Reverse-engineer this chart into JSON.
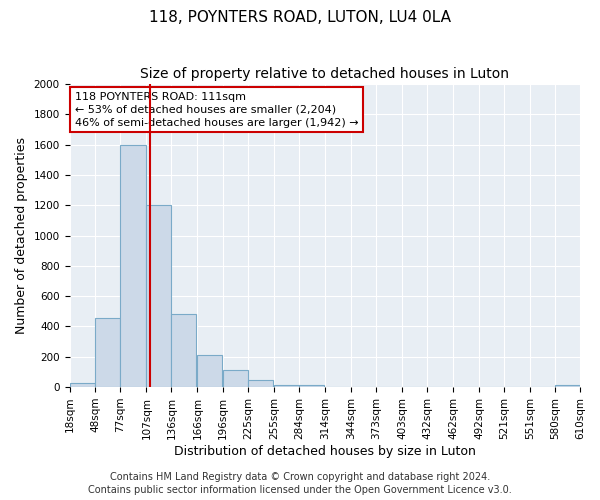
{
  "title": "118, POYNTERS ROAD, LUTON, LU4 0LA",
  "subtitle": "Size of property relative to detached houses in Luton",
  "xlabel": "Distribution of detached houses by size in Luton",
  "ylabel": "Number of detached properties",
  "bar_left_edges": [
    18,
    48,
    77,
    107,
    136,
    166,
    196,
    225,
    255,
    284,
    314,
    344,
    373,
    403,
    432,
    462,
    492,
    521,
    551,
    580
  ],
  "bar_heights": [
    30,
    455,
    1600,
    1200,
    480,
    210,
    115,
    45,
    15,
    15,
    0,
    0,
    0,
    0,
    0,
    0,
    0,
    0,
    0,
    15
  ],
  "bin_width": 29,
  "bar_color": "#ccd9e8",
  "bar_edge_color": "#7aaac8",
  "vline_x": 111,
  "vline_color": "#cc0000",
  "ylim": [
    0,
    2000
  ],
  "yticks": [
    0,
    200,
    400,
    600,
    800,
    1000,
    1200,
    1400,
    1600,
    1800,
    2000
  ],
  "xtick_labels": [
    "18sqm",
    "48sqm",
    "77sqm",
    "107sqm",
    "136sqm",
    "166sqm",
    "196sqm",
    "225sqm",
    "255sqm",
    "284sqm",
    "314sqm",
    "344sqm",
    "373sqm",
    "403sqm",
    "432sqm",
    "462sqm",
    "492sqm",
    "521sqm",
    "551sqm",
    "580sqm",
    "610sqm"
  ],
  "annotation_title": "118 POYNTERS ROAD: 111sqm",
  "annotation_line1": "← 53% of detached houses are smaller (2,204)",
  "annotation_line2": "46% of semi-detached houses are larger (1,942) →",
  "annotation_box_color": "#ffffff",
  "annotation_box_edge_color": "#cc0000",
  "footer_line1": "Contains HM Land Registry data © Crown copyright and database right 2024.",
  "footer_line2": "Contains public sector information licensed under the Open Government Licence v3.0.",
  "plot_bg_color": "#e8eef4",
  "fig_bg_color": "#ffffff",
  "grid_color": "#ffffff",
  "title_fontsize": 11,
  "subtitle_fontsize": 10,
  "axis_label_fontsize": 9,
  "tick_fontsize": 7.5,
  "annotation_fontsize": 8,
  "footer_fontsize": 7
}
